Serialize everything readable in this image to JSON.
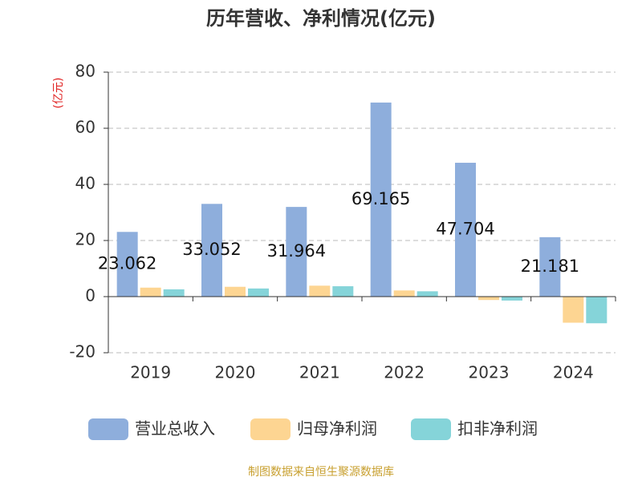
{
  "chart_data": {
    "type": "bar",
    "title": "历年营收、净利情况(亿元)",
    "y_label": "(亿元)",
    "source": "制图数据来自恒生聚源数据库",
    "categories": [
      "2019",
      "2020",
      "2021",
      "2022",
      "2023",
      "2024"
    ],
    "series": [
      {
        "name": "营业总收入",
        "color": "#8eaedc",
        "values": [
          23.062,
          33.052,
          31.964,
          69.165,
          47.704,
          21.181
        ],
        "show_labels": true
      },
      {
        "name": "归母净利润",
        "color": "#fdd592",
        "values": [
          3.2,
          3.5,
          3.9,
          2.2,
          -1.2,
          -9.3
        ]
      },
      {
        "name": "扣非净利润",
        "color": "#85d4d9",
        "values": [
          2.6,
          2.9,
          3.7,
          1.9,
          -1.4,
          -9.5
        ]
      }
    ],
    "ylim": [
      -20,
      80
    ],
    "yticks": [
      -20,
      0,
      20,
      40,
      60,
      80
    ],
    "grid": true
  }
}
